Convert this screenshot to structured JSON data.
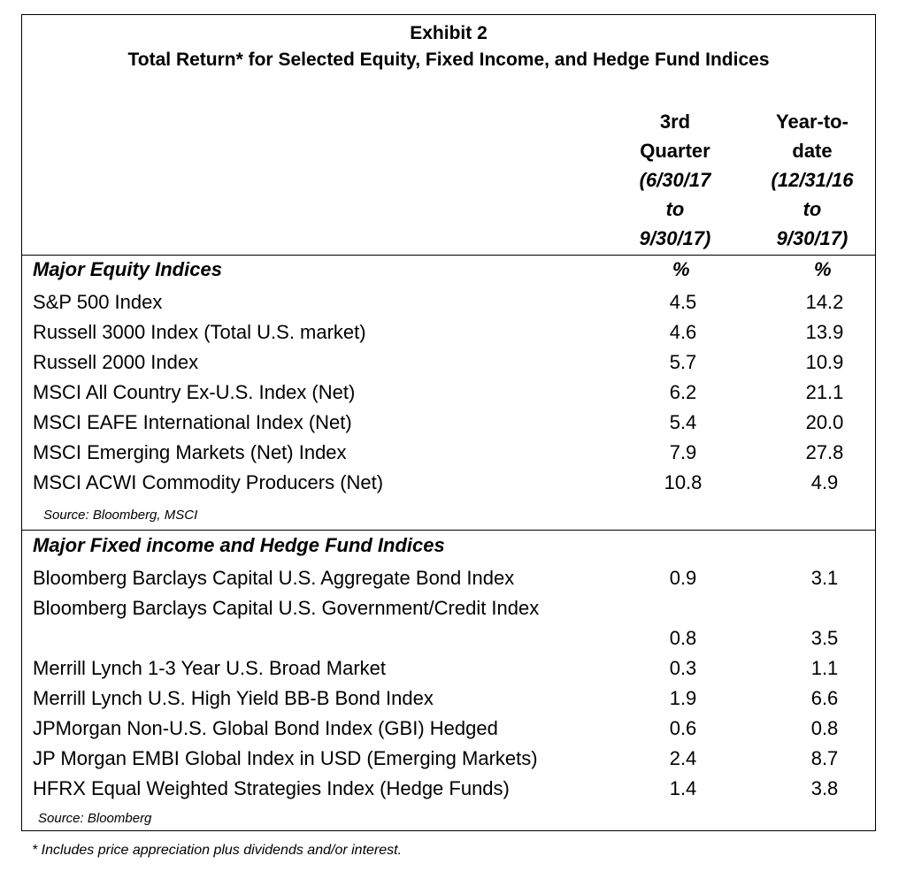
{
  "title": "Exhibit 2",
  "subtitle": "Total Return* for Selected Equity, Fixed Income, and Hedge Fund Indices",
  "columns": {
    "q3": {
      "l1": "3rd",
      "l2": "Quarter",
      "l3": "(6/30/17",
      "l4": "to",
      "l5": "9/30/17)"
    },
    "ytd": {
      "l1": "Year-to-",
      "l2": "date",
      "l3": "(12/31/16",
      "l4": "to",
      "l5": "9/30/17)"
    }
  },
  "equity": {
    "title": "Major Equity Indices",
    "unit1": "%",
    "unit2": "%",
    "rows": [
      {
        "label": "S&P 500 Index",
        "q3": "4.5",
        "ytd": "14.2"
      },
      {
        "label": "Russell 3000 Index (Total U.S. market)",
        "q3": "4.6",
        "ytd": "13.9"
      },
      {
        "label": "Russell 2000 Index",
        "q3": "5.7",
        "ytd": "10.9"
      },
      {
        "label": "MSCI All Country Ex-U.S. Index (Net)",
        "q3": "6.2",
        "ytd": "21.1"
      },
      {
        "label": "MSCI EAFE International Index (Net)",
        "q3": "5.4",
        "ytd": "20.0"
      },
      {
        "label": "MSCI Emerging Markets (Net) Index",
        "q3": "7.9",
        "ytd": "27.8"
      },
      {
        "label": "MSCI ACWI Commodity Producers (Net)",
        "q3": "10.8",
        "ytd": "4.9"
      }
    ],
    "source": "Source: Bloomberg, MSCI"
  },
  "fixed": {
    "title": "Major Fixed income and Hedge Fund Indices",
    "rows": [
      {
        "label": "Bloomberg Barclays Capital U.S. Aggregate Bond Index",
        "q3": "0.9",
        "ytd": "3.1"
      },
      {
        "label": "Bloomberg Barclays Capital U.S. Government/Credit Index",
        "q3": "0.8",
        "ytd": "3.5"
      },
      {
        "label": "Merrill Lynch 1-3 Year U.S. Broad Market",
        "q3": "0.3",
        "ytd": "1.1"
      },
      {
        "label": "Merrill Lynch U.S. High Yield BB-B Bond Index",
        "q3": "1.9",
        "ytd": "6.6"
      },
      {
        "label": "JPMorgan Non-U.S. Global Bond Index (GBI) Hedged",
        "q3": "0.6",
        "ytd": "0.8"
      },
      {
        "label": "JP Morgan EMBI Global Index in USD (Emerging Markets)",
        "q3": "2.4",
        "ytd": "8.7"
      },
      {
        "label": "HFRX Equal Weighted Strategies Index (Hedge Funds)",
        "q3": "1.4",
        "ytd": "3.8"
      }
    ],
    "source": "Source:  Bloomberg"
  },
  "footnote": "* Includes price appreciation plus dividends and/or interest."
}
